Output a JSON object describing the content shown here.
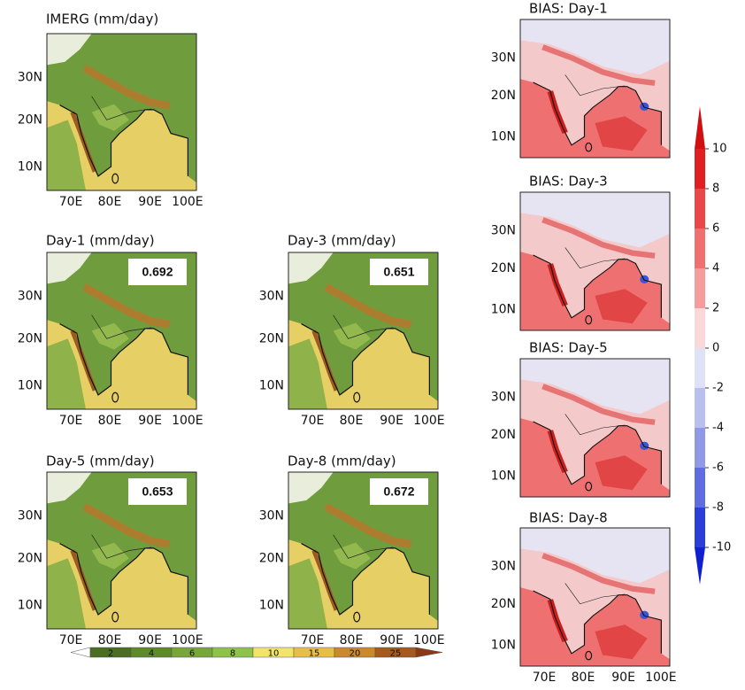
{
  "panels": [
    {
      "title": "IMERG (mm/day)",
      "x_labels": [
        "70E",
        "80E",
        "90E",
        "100E"
      ],
      "y_labels": [
        "30N",
        "20N",
        "10N"
      ]
    },
    {
      "title": "Day-1 (mm/day)",
      "score": 0.692,
      "x_labels": [
        "70E",
        "80E",
        "90E",
        "100E"
      ],
      "y_labels": [
        "30N",
        "20N",
        "10N"
      ]
    },
    {
      "title": "Day-3 (mm/day)",
      "score": 0.651,
      "x_labels": [
        "70E",
        "80E",
        "90E",
        "100E"
      ],
      "y_labels": [
        "30N",
        "20N",
        "10N"
      ]
    },
    {
      "title": "Day-5 (mm/day)",
      "score": 0.653,
      "x_labels": [
        "70E",
        "80E",
        "90E",
        "100E"
      ],
      "y_labels": [
        "30N",
        "20N",
        "10N"
      ]
    },
    {
      "title": "Day-8 (mm/day)",
      "score": 0.672,
      "x_labels": [
        "70E",
        "80E",
        "90E",
        "100E"
      ],
      "y_labels": [
        "30N",
        "20N",
        "10N"
      ]
    },
    {
      "title": "BIAS: Day-1",
      "y_labels": [
        "30N",
        "20N",
        "10N"
      ]
    },
    {
      "title": "BIAS: Day-3",
      "y_labels": [
        "30N",
        "20N",
        "10N"
      ]
    },
    {
      "title": "BIAS: Day-5",
      "y_labels": [
        "30N",
        "20N",
        "10N"
      ]
    },
    {
      "title": "BIAS: Day-8",
      "x_labels": [
        "70E",
        "80E",
        "90E",
        "100E"
      ],
      "y_labels": [
        "30N",
        "20N",
        "10N"
      ]
    }
  ],
  "precip_colorbar": {
    "labels": [
      2,
      4,
      6,
      8,
      10,
      15,
      20,
      25
    ]
  },
  "bias_colorbar": {
    "labels": [
      10,
      8,
      6,
      4,
      2,
      0,
      -2,
      -4,
      -6,
      -8,
      -10
    ]
  }
}
